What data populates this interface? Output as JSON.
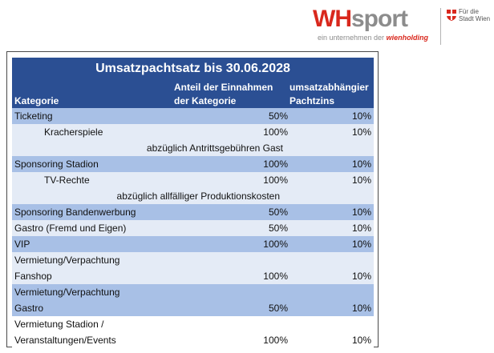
{
  "logo": {
    "brand_wh": "WH",
    "brand_sport": "sport",
    "tagline_prefix": "ein unternehmen der ",
    "tagline_brand": "wienholding",
    "city_line1": "Für die",
    "city_line2": "Stadt Wien"
  },
  "table": {
    "title": "Umsatzpachtsatz bis 30.06.2028",
    "headers": {
      "category": "Kategorie",
      "share_line1": "Anteil der Einnahmen",
      "share_line2": "der Kategorie",
      "rate_line1": "umsatzabhängier",
      "rate_line2": "Pachtzins"
    },
    "rows": [
      {
        "category": "Ticketing",
        "share": "50%",
        "rate": "10%"
      },
      {
        "category": "Kracherspiele",
        "share": "100%",
        "rate": "10%"
      },
      {
        "note": "abzüglich Antrittsgebühren Gast"
      },
      {
        "category": "Sponsoring Stadion",
        "share": "100%",
        "rate": "10%"
      },
      {
        "category": "TV-Rechte",
        "share": "100%",
        "rate": "10%"
      },
      {
        "note": "abzüglich allfälliger Produktionskosten"
      },
      {
        "category": "Sponsoring Bandenwerbung",
        "share": "50%",
        "rate": "10%"
      },
      {
        "category": "Gastro (Fremd und Eigen)",
        "share": "50%",
        "rate": "10%"
      },
      {
        "category": "VIP",
        "share": "100%",
        "rate": "10%"
      },
      {
        "category_line1": "Vermietung/Verpachtung",
        "category_line2": "Fanshop",
        "share": "100%",
        "rate": "10%"
      },
      {
        "category_line1": "Vermietung/Verpachtung",
        "category_line2": "Gastro",
        "share": "50%",
        "rate": "10%"
      },
      {
        "category_line1": "Vermietung Stadion /",
        "category_line2": "Veranstaltungen/Events",
        "share": "100%",
        "rate": "10%"
      }
    ]
  },
  "colors": {
    "header_blue": "#2b4f93",
    "row_dark": "#a8c0e6",
    "row_light": "#e4ebf6",
    "brand_red": "#d9281d"
  }
}
